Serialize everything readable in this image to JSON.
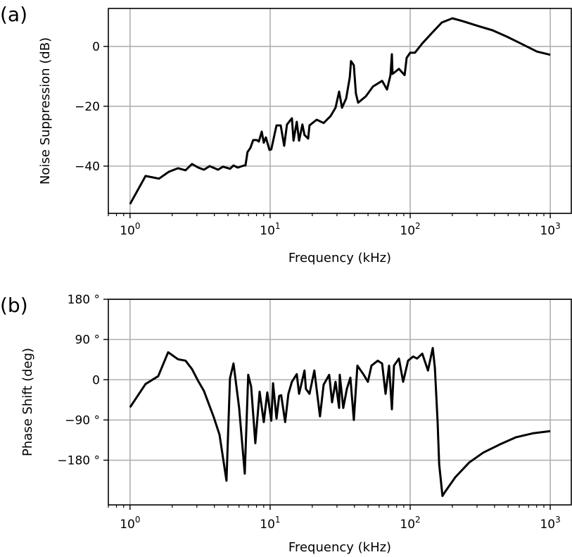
{
  "chart_data": [
    {
      "type": "line",
      "panel_label": "(a)",
      "xlabel": "Frequency (kHz)",
      "ylabel": "Noise Suppression (dB)",
      "xscale": "log",
      "xlim": [
        0.7,
        1413
      ],
      "ylim": [
        -55.8,
        12.7
      ],
      "grid": true,
      "xticks": [
        {
          "value": 1,
          "base": "10",
          "exp": "0"
        },
        {
          "value": 10,
          "base": "10",
          "exp": "1"
        },
        {
          "value": 100,
          "base": "10",
          "exp": "2"
        },
        {
          "value": 1000,
          "base": "10",
          "exp": "3"
        }
      ],
      "yticks": [
        {
          "value": 0,
          "label": "0"
        },
        {
          "value": -20,
          "label": "−20"
        },
        {
          "value": -40,
          "label": "−40"
        }
      ],
      "series": [
        {
          "name": "noise suppression",
          "color": "#000000",
          "x": [
            1.0,
            1.29,
            1.61,
            1.89,
            2.2,
            2.49,
            2.77,
            3.07,
            3.37,
            3.7,
            4.25,
            4.61,
            5.17,
            5.48,
            5.87,
            6.52,
            6.67,
            6.9,
            7.23,
            7.57,
            8.03,
            8.31,
            8.71,
            9.01,
            9.33,
            9.89,
            10.2,
            11.1,
            11.9,
            12.6,
            13.2,
            14.3,
            14.7,
            15.5,
            16.1,
            17.0,
            17.6,
            18.7,
            19.1,
            21.5,
            24.1,
            27.0,
            29.3,
            31.1,
            32.6,
            34.9,
            37.0,
            37.8,
            39.6,
            41.0,
            42.5,
            48.2,
            54.2,
            63.0,
            68.3,
            72.3,
            74.0,
            74.8,
            83.1,
            91.2,
            94.4,
            100,
            108,
            122,
            141,
            168,
            200,
            235,
            307,
            387,
            488,
            615,
            803,
            1000
          ],
          "y": [
            -52.7,
            -43.3,
            -44.2,
            -41.9,
            -40.7,
            -41.4,
            -39.3,
            -40.5,
            -41.2,
            -40.0,
            -41.2,
            -40.2,
            -40.9,
            -39.8,
            -40.5,
            -39.8,
            -39.8,
            -35.3,
            -33.9,
            -31.3,
            -31.3,
            -31.8,
            -28.5,
            -32.2,
            -30.4,
            -34.6,
            -34.4,
            -26.4,
            -26.4,
            -33.2,
            -26.1,
            -24.0,
            -31.5,
            -25.2,
            -31.5,
            -26.1,
            -29.6,
            -30.8,
            -26.4,
            -24.5,
            -25.6,
            -23.3,
            -20.5,
            -15.1,
            -20.5,
            -17.4,
            -10.4,
            -4.9,
            -6.3,
            -15.8,
            -18.8,
            -16.7,
            -13.4,
            -11.5,
            -14.4,
            -9.6,
            -2.6,
            -9.2,
            -7.5,
            -9.6,
            -3.8,
            -2.1,
            -2.1,
            1.0,
            4.2,
            8.0,
            9.4,
            8.5,
            6.8,
            5.4,
            3.3,
            1.0,
            -1.7,
            -2.8
          ]
        }
      ]
    },
    {
      "type": "line",
      "panel_label": "(b)",
      "xlabel": "Frequency (kHz)",
      "ylabel": "Phase Shift (deg)",
      "xscale": "log",
      "xlim": [
        0.7,
        1413
      ],
      "ylim": [
        -280,
        180
      ],
      "grid": true,
      "xticks": [
        {
          "value": 1,
          "base": "10",
          "exp": "0"
        },
        {
          "value": 10,
          "base": "10",
          "exp": "1"
        },
        {
          "value": 100,
          "base": "10",
          "exp": "2"
        },
        {
          "value": 1000,
          "base": "10",
          "exp": "3"
        }
      ],
      "yticks": [
        {
          "value": 180,
          "label": "180 °"
        },
        {
          "value": 90,
          "label": "90 °"
        },
        {
          "value": 0,
          "label": "0"
        },
        {
          "value": -90,
          "label": "−90 °"
        },
        {
          "value": -180,
          "label": "−180 °"
        }
      ],
      "series": [
        {
          "name": "phase shift",
          "color": "#000000",
          "x": [
            1.0,
            1.29,
            1.59,
            1.87,
            2.2,
            2.49,
            2.77,
            3.07,
            3.37,
            3.96,
            4.35,
            4.88,
            5.17,
            5.48,
            6.01,
            6.59,
            6.98,
            7.32,
            7.84,
            8.41,
            9.01,
            9.55,
            10.2,
            10.5,
            11.1,
            11.6,
            12.0,
            12.8,
            13.5,
            14.3,
            15.5,
            16.1,
            17.6,
            18.0,
            19.1,
            20.7,
            22.7,
            24.1,
            26.4,
            27.7,
            29.3,
            31.1,
            31.4,
            33.3,
            35.3,
            37.4,
            39.6,
            42.0,
            46.6,
            49.9,
            52.9,
            58.7,
            63.0,
            66.7,
            70.7,
            74.0,
            76.6,
            83.1,
            89.1,
            96.6,
            105,
            112,
            122,
            134,
            145,
            150,
            157,
            161,
            170,
            178,
            210,
            264,
            333,
            435,
            567,
            749,
            1000
          ],
          "y": [
            -61.6,
            -9.5,
            7.9,
            61.6,
            45.8,
            42.6,
            23.7,
            -3.2,
            -25.3,
            -83.7,
            -123,
            -226,
            3.2,
            36.3,
            -63,
            -210,
            11,
            -15.8,
            -142,
            -26.8,
            -94.7,
            -28.4,
            -91.6,
            -7.9,
            -86.8,
            -36.3,
            -34.7,
            -94.7,
            -31.6,
            -4.7,
            12.6,
            -31.6,
            20.5,
            -20.5,
            -31.6,
            20.5,
            -82,
            -11,
            11,
            -50.5,
            -4.7,
            -63,
            11,
            -63,
            -20.5,
            4.7,
            -90,
            31.6,
            11,
            -4.7,
            31.6,
            42.6,
            36.3,
            -31.6,
            31.6,
            -66,
            31.6,
            47.4,
            -4.7,
            42.6,
            52,
            47.4,
            58.4,
            20.5,
            71,
            26.8,
            -94.7,
            -189,
            -260,
            -250,
            -218,
            -185,
            -163,
            -145,
            -129,
            -120,
            -115
          ]
        }
      ]
    }
  ]
}
